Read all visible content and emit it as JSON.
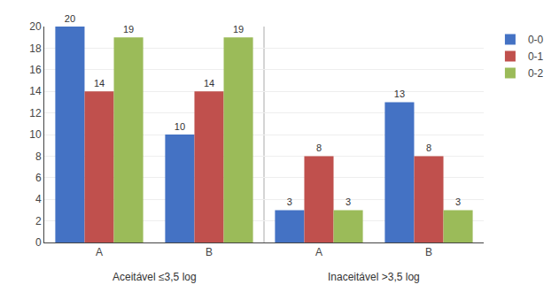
{
  "chart_data": {
    "type": "bar",
    "categories": [
      "A",
      "B",
      "A",
      "B"
    ],
    "annotations": [
      {
        "text": "Aceitável ≤3,5 log",
        "x": [
          0,
          1
        ]
      },
      {
        "text": "Inaceitável >3,5 log",
        "x": [
          2,
          3
        ]
      }
    ],
    "series": [
      {
        "name": "0-0",
        "color": "#4472C4",
        "values": [
          20,
          10,
          3,
          13
        ]
      },
      {
        "name": "0-1",
        "color": "#C0504D",
        "values": [
          14,
          14,
          8,
          8
        ]
      },
      {
        "name": "0-2",
        "color": "#9BBB59",
        "values": [
          19,
          19,
          3,
          3
        ]
      }
    ],
    "ylim": [
      0,
      20
    ],
    "yticks": [
      0,
      2,
      4,
      6,
      8,
      10,
      12,
      14,
      16,
      18,
      20
    ],
    "grid": true,
    "legend": "upper right",
    "data_labels": true
  }
}
